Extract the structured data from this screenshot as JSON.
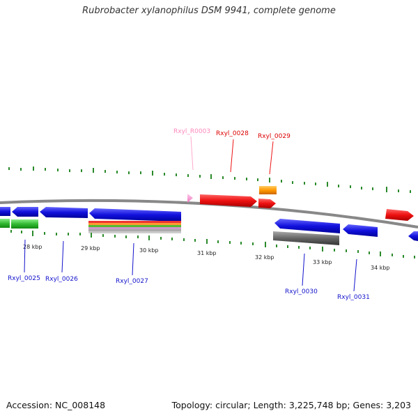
{
  "title": "Rubrobacter xylanophilus DSM 9941, complete genome",
  "footer": {
    "accession": "Accession: NC_008148",
    "summary": "Topology: circular; Length: 3,225,748 bp; Genes: 3,203"
  },
  "colors": {
    "backbone": "#888888",
    "tick": "#2a8a2a",
    "forward_gene": "#ee1111",
    "reverse_gene": "#1111dd",
    "rna": "#ff99cc",
    "green_feature": "#33bb33",
    "orange_feature": "#ff9900",
    "gray_feature": "#666666"
  },
  "scale_labels": [
    "28 kbp",
    "29 kbp",
    "30 kbp",
    "31 kbp",
    "32 kbp",
    "33 kbp",
    "34 kbp"
  ],
  "gene_labels": {
    "top": [
      "Rxyl_R0003",
      "Rxyl_0028",
      "Rxyl_0029"
    ],
    "bottom": [
      "Rxyl_0025",
      "Rxyl_0026",
      "Rxyl_0027",
      "Rxyl_0030",
      "Rxyl_0031"
    ]
  }
}
